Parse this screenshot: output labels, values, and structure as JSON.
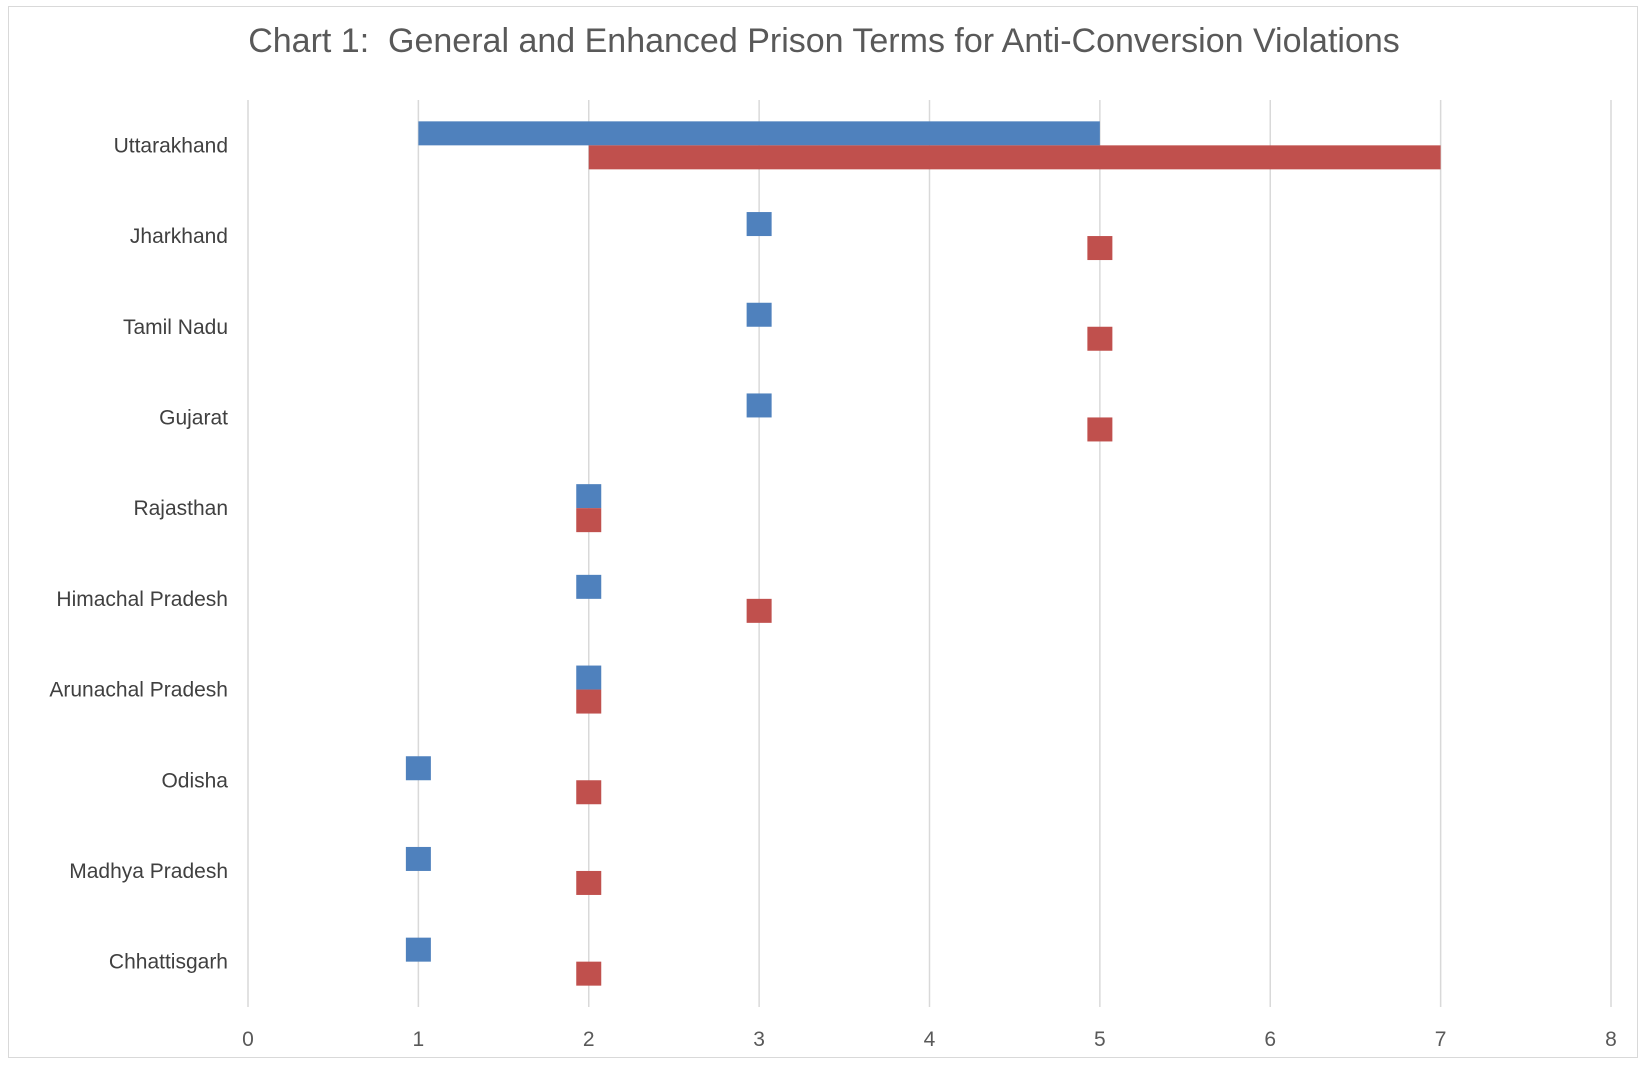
{
  "chart_data": {
    "type": "bar",
    "title": "Chart 1:  General and Enhanced Prison Terms for Anti-Conversion Violations",
    "xlabel": "",
    "ylabel": "",
    "xlim": [
      0,
      8
    ],
    "x_ticks": [
      "0",
      "1",
      "2",
      "3",
      "4",
      "5",
      "6",
      "7",
      "8"
    ],
    "grid": "vertical",
    "legend": "none",
    "categories": [
      "Uttarakhand",
      "Jharkhand",
      "Tamil Nadu",
      "Gujarat",
      "Rajasthan",
      "Himachal Pradesh",
      "Arunachal Pradesh",
      "Odisha",
      "Madhya Pradesh",
      "Chhattisgarh"
    ],
    "series": [
      {
        "color": "#4f81bd",
        "ranges": [
          [
            1,
            5
          ],
          [
            3,
            3
          ],
          [
            3,
            3
          ],
          [
            3,
            3
          ],
          [
            2,
            2
          ],
          [
            2,
            2
          ],
          [
            2,
            2
          ],
          [
            1,
            1
          ],
          [
            1,
            1
          ],
          [
            1,
            1
          ]
        ]
      },
      {
        "color": "#c0504d",
        "ranges": [
          [
            2,
            7
          ],
          [
            5,
            5
          ],
          [
            5,
            5
          ],
          [
            5,
            5
          ],
          [
            2,
            2
          ],
          [
            3,
            3
          ],
          [
            2,
            2
          ],
          [
            2,
            2
          ],
          [
            2,
            2
          ],
          [
            2,
            2
          ]
        ]
      }
    ]
  }
}
